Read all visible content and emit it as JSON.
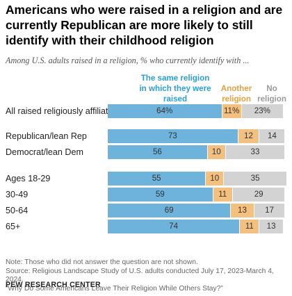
{
  "title": "Americans who were raised in a religion and are currently Republican are more likely to still identify with their childhood religion",
  "subtitle": "Among U.S. adults raised in a religion, % who currently identify with ...",
  "colors": {
    "same": "#6eb3dc",
    "another": "#f3c07f",
    "none": "#d3d3d3"
  },
  "chart_data": {
    "type": "bar",
    "orientation": "horizontal",
    "stacked": true,
    "categories": [
      "All raised religiously affiliated",
      "Republican/lean Rep",
      "Democrat/lean Dem",
      "Ages 18-29",
      "30-49",
      "50-64",
      "65+"
    ],
    "series": [
      {
        "name": "The same religion in which they were raised",
        "values": [
          64,
          73,
          56,
          55,
          59,
          69,
          74
        ],
        "labels": [
          "64%",
          "73",
          "56",
          "55",
          "59",
          "69",
          "74"
        ]
      },
      {
        "name": "Another religion",
        "values": [
          11,
          12,
          10,
          10,
          11,
          13,
          11
        ],
        "labels": [
          "11%",
          "12",
          "10",
          "10",
          "11",
          "13",
          "11"
        ]
      },
      {
        "name": "No religion",
        "values": [
          23,
          14,
          33,
          35,
          29,
          17,
          13
        ],
        "labels": [
          "23%",
          "14",
          "33",
          "35",
          "29",
          "17",
          "13"
        ]
      }
    ],
    "xlim": [
      0,
      100
    ]
  },
  "note": "Note: Those who did not answer the question are not shown.",
  "source": "Source: Religious Landscape Study of U.S. adults conducted July 17, 2023-March 4, 2024.",
  "report": "“Why Do Some Americans Leave Their Religion While Others Stay?”",
  "brand": "PEW RESEARCH CENTER"
}
